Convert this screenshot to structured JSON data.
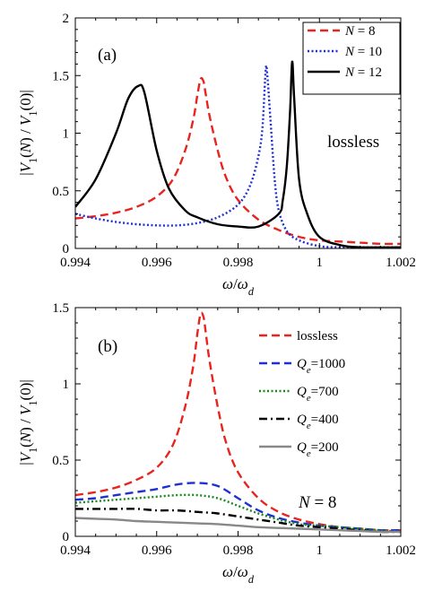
{
  "chart_data": [
    {
      "type": "line",
      "panel_label": "(a)",
      "annotation": "lossless",
      "xlabel": "ω/ω_d",
      "ylabel": "|V₁(N) / V₁(0)|",
      "xlim": [
        0.994,
        1.002
      ],
      "ylim": [
        0,
        2
      ],
      "xticks": [
        "0.994",
        "0.996",
        "0.998",
        "1",
        "1.002"
      ],
      "yticks": [
        "0",
        "0.5",
        "1",
        "1.5",
        "2"
      ],
      "grid": false,
      "legend_position": "top-right",
      "series": [
        {
          "name": "N = 8",
          "color": "#e8241f",
          "dash": "dashed",
          "x": [
            0.994,
            0.9945,
            0.995,
            0.9955,
            0.996,
            0.9964,
            0.9967,
            0.9969,
            0.997,
            0.99708,
            0.99715,
            0.9972,
            0.9973,
            0.9975,
            0.9977,
            0.998,
            0.9985,
            0.999,
            0.9995,
            1.0,
            1.0005,
            1.001,
            1.0015,
            1.002
          ],
          "y": [
            0.26,
            0.28,
            0.31,
            0.36,
            0.45,
            0.6,
            0.85,
            1.12,
            1.33,
            1.47,
            1.45,
            1.35,
            1.15,
            0.85,
            0.62,
            0.42,
            0.25,
            0.16,
            0.1,
            0.07,
            0.06,
            0.05,
            0.04,
            0.04
          ]
        },
        {
          "name": "N = 10",
          "color": "#1f2fd6",
          "dash": "dotted",
          "x": [
            0.994,
            0.9945,
            0.995,
            0.9955,
            0.996,
            0.9965,
            0.997,
            0.9975,
            0.998,
            0.9983,
            0.9985,
            0.9986,
            0.99868,
            0.99872,
            0.9988,
            0.9989,
            0.999,
            0.9992,
            0.9995,
            1.0,
            1.0005,
            1.001,
            1.002
          ],
          "y": [
            0.3,
            0.26,
            0.23,
            0.21,
            0.2,
            0.2,
            0.22,
            0.27,
            0.38,
            0.55,
            0.8,
            1.05,
            1.55,
            1.5,
            1.1,
            0.6,
            0.33,
            0.15,
            0.07,
            0.02,
            0.01,
            0.01,
            0.01
          ]
        },
        {
          "name": "N = 12",
          "color": "#000000",
          "dash": "solid",
          "x": [
            0.994,
            0.9945,
            0.995,
            0.9953,
            0.99555,
            0.9957,
            0.996,
            0.9963,
            0.9967,
            0.997,
            0.9975,
            0.998,
            0.9985,
            0.999,
            0.9991,
            0.9992,
            0.99928,
            0.99933,
            0.99938,
            0.9995,
            0.9997,
            1.0,
            1.0005,
            1.001,
            1.002
          ],
          "y": [
            0.36,
            0.6,
            1.0,
            1.3,
            1.41,
            1.35,
            0.85,
            0.52,
            0.33,
            0.27,
            0.21,
            0.19,
            0.19,
            0.3,
            0.42,
            0.72,
            1.2,
            1.62,
            1.3,
            0.6,
            0.3,
            0.1,
            0.03,
            0.01,
            0.01
          ]
        }
      ]
    },
    {
      "type": "line",
      "panel_label": "(b)",
      "annotation": "N = 8",
      "xlabel": "ω/ω_d",
      "ylabel": "|V₁(N) / V₁(0)|",
      "xlim": [
        0.994,
        1.002
      ],
      "ylim": [
        0,
        1.5
      ],
      "xticks": [
        "0.994",
        "0.996",
        "0.998",
        "1",
        "1.002"
      ],
      "yticks": [
        "0",
        "0.5",
        "1",
        "1.5"
      ],
      "grid": false,
      "legend_position": "top-right",
      "series": [
        {
          "name": "lossless",
          "color": "#e8241f",
          "dash": "dashed",
          "x": [
            0.994,
            0.9945,
            0.995,
            0.9955,
            0.996,
            0.9964,
            0.9967,
            0.9969,
            0.997,
            0.99708,
            0.99715,
            0.9972,
            0.9973,
            0.9975,
            0.9977,
            0.998,
            0.9985,
            0.999,
            0.9995,
            1.0,
            1.0005,
            1.001,
            1.0015,
            1.002
          ],
          "y": [
            0.27,
            0.29,
            0.32,
            0.37,
            0.45,
            0.6,
            0.85,
            1.12,
            1.33,
            1.46,
            1.44,
            1.35,
            1.15,
            0.85,
            0.62,
            0.42,
            0.25,
            0.16,
            0.11,
            0.08,
            0.06,
            0.05,
            0.04,
            0.04
          ]
        },
        {
          "name": "Q_e=1000",
          "color": "#1f2fd6",
          "dash": "dashed",
          "x": [
            0.994,
            0.9945,
            0.995,
            0.9955,
            0.996,
            0.9965,
            0.997,
            0.9975,
            0.998,
            0.9985,
            0.999,
            0.9995,
            1.0,
            1.0005,
            1.001,
            1.0015,
            1.002
          ],
          "y": [
            0.24,
            0.25,
            0.27,
            0.29,
            0.31,
            0.34,
            0.35,
            0.33,
            0.25,
            0.17,
            0.12,
            0.09,
            0.07,
            0.06,
            0.05,
            0.04,
            0.04
          ]
        },
        {
          "name": "Q_e=700",
          "color": "#1a8a1a",
          "dash": "dotted",
          "x": [
            0.994,
            0.9945,
            0.995,
            0.9955,
            0.996,
            0.9965,
            0.997,
            0.9975,
            0.998,
            0.9985,
            0.999,
            0.9995,
            1.0,
            1.0005,
            1.001,
            1.0015,
            1.002
          ],
          "y": [
            0.22,
            0.23,
            0.24,
            0.25,
            0.26,
            0.27,
            0.27,
            0.25,
            0.2,
            0.15,
            0.11,
            0.08,
            0.07,
            0.06,
            0.05,
            0.04,
            0.03
          ]
        },
        {
          "name": "Q_e=400",
          "color": "#000000",
          "dash": "dashdot",
          "x": [
            0.994,
            0.9945,
            0.995,
            0.9955,
            0.996,
            0.9965,
            0.997,
            0.9975,
            0.998,
            0.9985,
            0.999,
            0.9995,
            1.0,
            1.0005,
            1.001,
            1.0015,
            1.002
          ],
          "y": [
            0.18,
            0.18,
            0.18,
            0.18,
            0.17,
            0.17,
            0.16,
            0.15,
            0.13,
            0.11,
            0.09,
            0.07,
            0.06,
            0.05,
            0.04,
            0.03,
            0.03
          ]
        },
        {
          "name": "Q_e=200",
          "color": "#888888",
          "dash": "solid",
          "x": [
            0.994,
            0.9945,
            0.995,
            0.9955,
            0.996,
            0.9965,
            0.997,
            0.9975,
            0.998,
            0.9985,
            0.999,
            0.9995,
            1.0,
            1.0005,
            1.001,
            1.0015,
            1.002
          ],
          "y": [
            0.12,
            0.115,
            0.11,
            0.1,
            0.095,
            0.09,
            0.085,
            0.08,
            0.07,
            0.06,
            0.055,
            0.05,
            0.045,
            0.04,
            0.035,
            0.03,
            0.03
          ]
        }
      ]
    }
  ]
}
